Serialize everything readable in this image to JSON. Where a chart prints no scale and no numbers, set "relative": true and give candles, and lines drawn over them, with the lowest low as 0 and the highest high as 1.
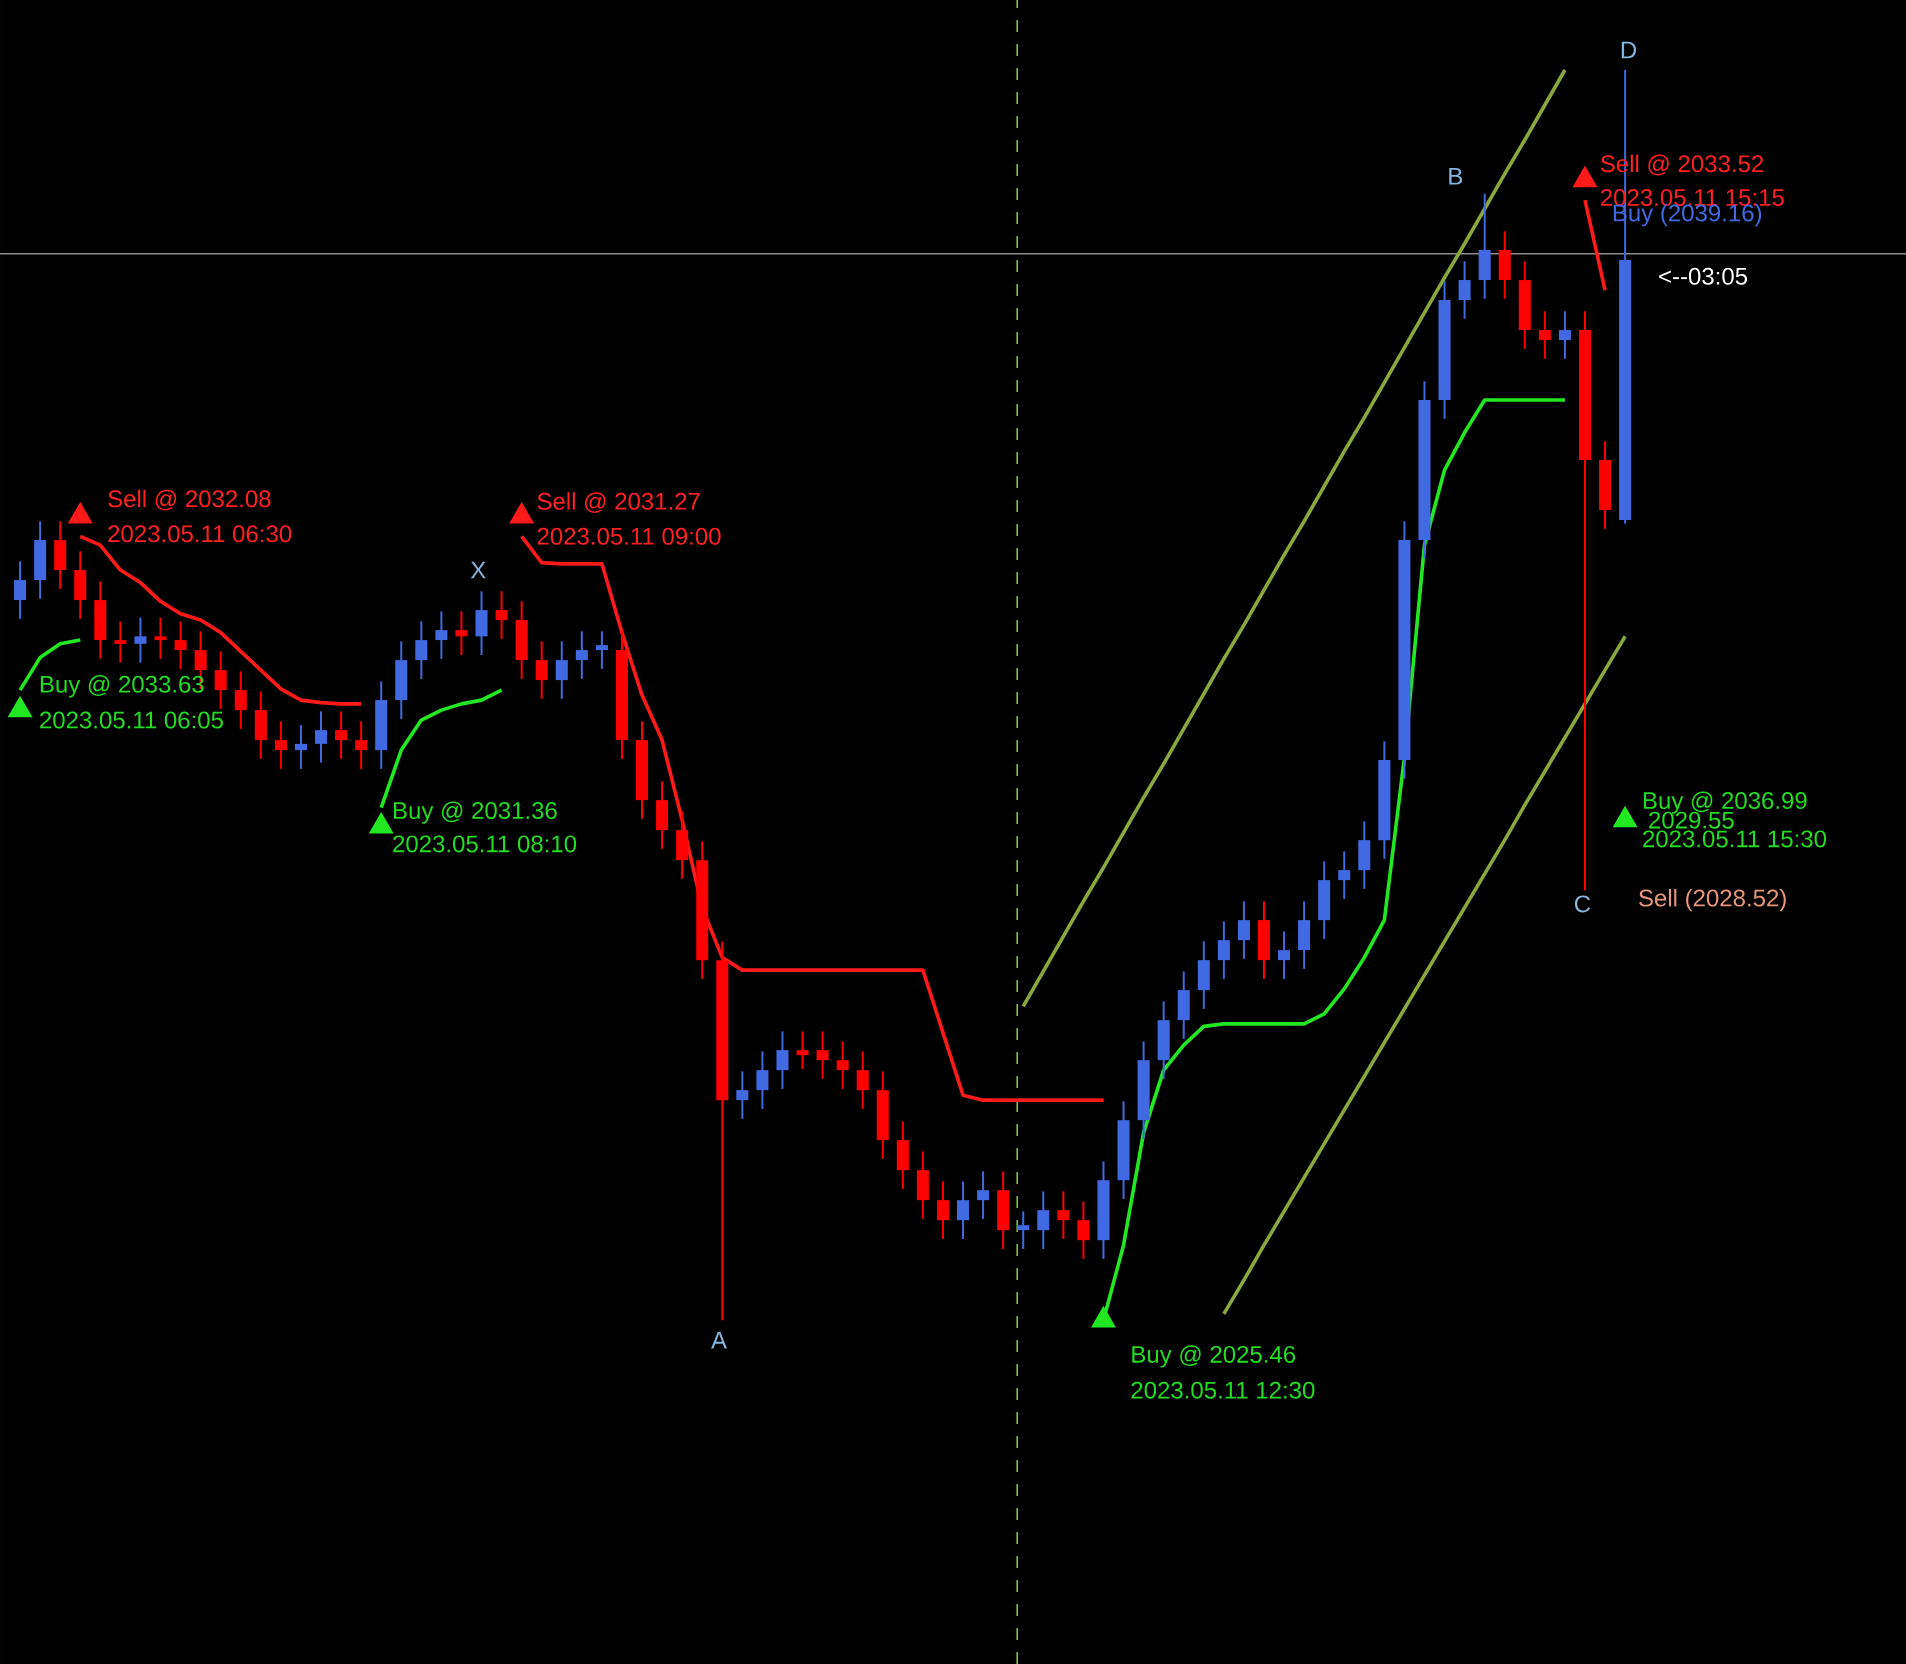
{
  "chart_data": {
    "type": "candlestick",
    "relative": true,
    "categories": [
      null,
      null,
      null,
      null,
      null,
      null,
      null,
      null,
      null,
      null,
      null,
      null,
      null,
      null,
      null,
      null,
      null,
      null,
      null,
      null,
      null,
      null,
      null,
      null,
      null,
      null,
      null,
      null,
      null,
      null,
      null,
      null,
      null,
      null,
      null,
      null,
      null,
      null,
      null,
      null,
      null,
      null,
      null,
      null,
      null,
      null,
      null,
      null,
      null,
      null,
      null,
      null,
      null,
      null,
      null,
      null,
      null,
      null,
      null,
      null,
      null,
      null,
      null,
      null,
      null,
      null,
      null,
      null,
      null,
      null,
      null,
      null,
      null,
      null,
      null,
      null,
      null,
      null,
      null,
      null,
      null
    ],
    "ohlc": [
      [
        0.576,
        0.607,
        0.561,
        0.592
      ],
      [
        0.592,
        0.639,
        0.577,
        0.624
      ],
      [
        0.624,
        0.639,
        0.585,
        0.6
      ],
      [
        0.6,
        0.615,
        0.561,
        0.576
      ],
      [
        0.576,
        0.591,
        0.529,
        0.544
      ],
      [
        0.544,
        0.559,
        0.526,
        0.541
      ],
      [
        0.541,
        0.562,
        0.526,
        0.547
      ],
      [
        0.547,
        0.562,
        0.529,
        0.544
      ],
      [
        0.544,
        0.559,
        0.521,
        0.536
      ],
      [
        0.536,
        0.551,
        0.505,
        0.52
      ],
      [
        0.52,
        0.535,
        0.489,
        0.504
      ],
      [
        0.504,
        0.519,
        0.473,
        0.488
      ],
      [
        0.488,
        0.503,
        0.449,
        0.464
      ],
      [
        0.464,
        0.479,
        0.441,
        0.456
      ],
      [
        0.456,
        0.476,
        0.441,
        0.461
      ],
      [
        0.461,
        0.487,
        0.446,
        0.472
      ],
      [
        0.472,
        0.487,
        0.449,
        0.464
      ],
      [
        0.464,
        0.479,
        0.441,
        0.456
      ],
      [
        0.456,
        0.511,
        0.441,
        0.496
      ],
      [
        0.496,
        0.543,
        0.481,
        0.528
      ],
      [
        0.528,
        0.559,
        0.513,
        0.544
      ],
      [
        0.544,
        0.567,
        0.529,
        0.552
      ],
      [
        0.552,
        0.567,
        0.532,
        0.547
      ],
      [
        0.547,
        0.583,
        0.532,
        0.568
      ],
      [
        0.568,
        0.583,
        0.545,
        0.56
      ],
      [
        0.56,
        0.575,
        0.513,
        0.528
      ],
      [
        0.528,
        0.543,
        0.497,
        0.512
      ],
      [
        0.512,
        0.543,
        0.497,
        0.528
      ],
      [
        0.528,
        0.551,
        0.513,
        0.536
      ],
      [
        0.536,
        0.551,
        0.521,
        0.54
      ],
      [
        0.536,
        0.551,
        0.449,
        0.464
      ],
      [
        0.464,
        0.479,
        0.401,
        0.416
      ],
      [
        0.416,
        0.431,
        0.377,
        0.392
      ],
      [
        0.392,
        0.407,
        0.353,
        0.368
      ],
      [
        0.368,
        0.383,
        0.273,
        0.288
      ],
      [
        0.288,
        0.303,
        0,
        0.176
      ],
      [
        0.176,
        0.199,
        0.161,
        0.184
      ],
      [
        0.184,
        0.215,
        0.169,
        0.2
      ],
      [
        0.2,
        0.231,
        0.185,
        0.216
      ],
      [
        0.216,
        0.231,
        0.201,
        0.212
      ],
      [
        0.216,
        0.231,
        0.193,
        0.208
      ],
      [
        0.208,
        0.223,
        0.185,
        0.2
      ],
      [
        0.2,
        0.215,
        0.169,
        0.184
      ],
      [
        0.184,
        0.199,
        0.129,
        0.144
      ],
      [
        0.144,
        0.159,
        0.105,
        0.12
      ],
      [
        0.12,
        0.135,
        0.081,
        0.096
      ],
      [
        0.096,
        0.111,
        0.065,
        0.08
      ],
      [
        0.08,
        0.111,
        0.065,
        0.096
      ],
      [
        0.096,
        0.119,
        0.081,
        0.104
      ],
      [
        0.104,
        0.119,
        0.057,
        0.072
      ],
      [
        0.072,
        0.087,
        0.057,
        0.076
      ],
      [
        0.072,
        0.103,
        0.057,
        0.088
      ],
      [
        0.088,
        0.103,
        0.065,
        0.08
      ],
      [
        0.08,
        0.095,
        0.049,
        0.064
      ],
      [
        0.064,
        0.127,
        0.049,
        0.112
      ],
      [
        0.112,
        0.175,
        0.097,
        0.16
      ],
      [
        0.16,
        0.223,
        0.145,
        0.208
      ],
      [
        0.208,
        0.255,
        0.193,
        0.24
      ],
      [
        0.24,
        0.279,
        0.225,
        0.264
      ],
      [
        0.264,
        0.303,
        0.249,
        0.288
      ],
      [
        0.288,
        0.319,
        0.273,
        0.304
      ],
      [
        0.304,
        0.335,
        0.289,
        0.32
      ],
      [
        0.32,
        0.335,
        0.273,
        0.288
      ],
      [
        0.288,
        0.311,
        0.273,
        0.296
      ],
      [
        0.296,
        0.335,
        0.281,
        0.32
      ],
      [
        0.32,
        0.367,
        0.305,
        0.352
      ],
      [
        0.352,
        0.375,
        0.337,
        0.36
      ],
      [
        0.36,
        0.399,
        0.345,
        0.384
      ],
      [
        0.384,
        0.463,
        0.369,
        0.448
      ],
      [
        0.448,
        0.639,
        0.433,
        0.624
      ],
      [
        0.624,
        0.751,
        0.609,
        0.736
      ],
      [
        0.736,
        0.831,
        0.721,
        0.816
      ],
      [
        0.816,
        0.847,
        0.801,
        0.832
      ],
      [
        0.832,
        0.901,
        0.817,
        0.856
      ],
      [
        0.856,
        0.871,
        0.817,
        0.832
      ],
      [
        0.832,
        0.847,
        0.777,
        0.792
      ],
      [
        0.792,
        0.807,
        0.769,
        0.784
      ],
      [
        0.784,
        0.807,
        0.769,
        0.792
      ],
      [
        0.792,
        0.807,
        0.344,
        0.688
      ],
      [
        0.688,
        0.703,
        0.633,
        0.648
      ],
      [
        0.64,
        1,
        0.637,
        0.848
      ]
    ],
    "colors": [
      "#4169e1",
      "#4169e1",
      "#ff0000",
      "#ff0000",
      "#ff0000",
      "#ff0000",
      "#4169e1",
      "#ff0000",
      "#ff0000",
      "#ff0000",
      "#ff0000",
      "#ff0000",
      "#ff0000",
      "#ff0000",
      "#4169e1",
      "#4169e1",
      "#ff0000",
      "#ff0000",
      "#4169e1",
      "#4169e1",
      "#4169e1",
      "#4169e1",
      "#ff0000",
      "#4169e1",
      "#ff0000",
      "#ff0000",
      "#ff0000",
      "#4169e1",
      "#4169e1",
      "#4169e1",
      "#ff0000",
      "#ff0000",
      "#ff0000",
      "#ff0000",
      "#ff0000",
      "#ff0000",
      "#4169e1",
      "#4169e1",
      "#4169e1",
      "#ff0000",
      "#ff0000",
      "#ff0000",
      "#ff0000",
      "#ff0000",
      "#ff0000",
      "#ff0000",
      "#ff0000",
      "#4169e1",
      "#4169e1",
      "#ff0000",
      "#4169e1",
      "#4169e1",
      "#ff0000",
      "#ff0000",
      "#4169e1",
      "#4169e1",
      "#4169e1",
      "#4169e1",
      "#4169e1",
      "#4169e1",
      "#4169e1",
      "#4169e1",
      "#ff0000",
      "#4169e1",
      "#4169e1",
      "#4169e1",
      "#4169e1",
      "#4169e1",
      "#4169e1",
      "#4169e1",
      "#4169e1",
      "#4169e1",
      "#4169e1",
      "#4169e1",
      "#ff0000",
      "#ff0000",
      "#ff0000",
      "#4169e1",
      "#ff0000",
      "#ff0000",
      "#4169e1"
    ],
    "series": [
      {
        "type": "line",
        "color": "#ff1a1a",
        "values": [
          null,
          null,
          null,
          0.627,
          0.62,
          0.6,
          0.59,
          0.575,
          0.565,
          0.56,
          0.55,
          0.535,
          0.52,
          0.505,
          0.496,
          0.494,
          0.493,
          0.493,
          null,
          null,
          null,
          null,
          null,
          null,
          null,
          0.627,
          0.606,
          0.605,
          0.605,
          0.605,
          0.55,
          0.5,
          0.464,
          0.4,
          0.33,
          0.29,
          0.28,
          0.28,
          0.28,
          0.28,
          0.28,
          0.28,
          0.28,
          0.28,
          0.28,
          0.28,
          0.23,
          0.18,
          0.176,
          0.176,
          0.176,
          0.176,
          0.176,
          0.176,
          0.176,
          null,
          null,
          null,
          null,
          null,
          null,
          null,
          null,
          null,
          null,
          null,
          null,
          null,
          null,
          null,
          null,
          null,
          null,
          null,
          null,
          null,
          null,
          null,
          0.896,
          0.824,
          null
        ]
      },
      {
        "type": "line",
        "color": "#22e822",
        "values": [
          0.504,
          0.53,
          0.541,
          0.544,
          null,
          null,
          null,
          null,
          null,
          null,
          null,
          null,
          null,
          null,
          null,
          null,
          null,
          null,
          0.41,
          0.456,
          0.48,
          0.488,
          0.493,
          0.496,
          0.504,
          null,
          null,
          null,
          null,
          null,
          null,
          null,
          null,
          null,
          null,
          null,
          null,
          null,
          null,
          null,
          null,
          null,
          null,
          null,
          null,
          null,
          null,
          null,
          null,
          null,
          null,
          null,
          null,
          null,
          0,
          0.06,
          0.15,
          0.2,
          0.22,
          0.235,
          0.237,
          0.237,
          0.237,
          0.237,
          0.237,
          0.245,
          0.265,
          0.29,
          0.32,
          0.45,
          0.62,
          0.68,
          0.71,
          0.736,
          0.736,
          0.736,
          0.736,
          0.736,
          null,
          null,
          null
        ]
      },
      {
        "type": "line",
        "color": "#8aa83c",
        "values": [
          null,
          null,
          null,
          null,
          null,
          null,
          null,
          null,
          null,
          null,
          null,
          null,
          null,
          null,
          null,
          null,
          null,
          null,
          null,
          null,
          null,
          null,
          null,
          null,
          null,
          null,
          null,
          null,
          null,
          null,
          null,
          null,
          null,
          null,
          null,
          null,
          null,
          null,
          null,
          null,
          null,
          null,
          null,
          null,
          null,
          null,
          null,
          null,
          null,
          null,
          0.251,
          0.279,
          0.307,
          0.335,
          0.362,
          0.39,
          0.418,
          0.445,
          0.473,
          0.501,
          0.529,
          0.556,
          0.584,
          0.612,
          0.639,
          0.667,
          0.695,
          0.722,
          0.75,
          0.778,
          0.806,
          0.834,
          0.861,
          0.889,
          0.917,
          0.944,
          0.972,
          1,
          null,
          null,
          null
        ]
      },
      {
        "type": "line",
        "color": "#8aa83c",
        "values": [
          null,
          null,
          null,
          null,
          null,
          null,
          null,
          null,
          null,
          null,
          null,
          null,
          null,
          null,
          null,
          null,
          null,
          null,
          null,
          null,
          null,
          null,
          null,
          null,
          null,
          null,
          null,
          null,
          null,
          null,
          null,
          null,
          null,
          null,
          null,
          null,
          null,
          null,
          null,
          null,
          null,
          null,
          null,
          null,
          null,
          null,
          null,
          null,
          null,
          null,
          null,
          null,
          null,
          null,
          null,
          null,
          null,
          null,
          null,
          null,
          0.005,
          0.032,
          0.06,
          0.087,
          0.114,
          0.141,
          0.168,
          0.195,
          0.222,
          0.249,
          0.276,
          0.303,
          0.33,
          0.357,
          0.384,
          0.412,
          0.439,
          0.466,
          0.493,
          0.52,
          0.547
        ]
      },
      {
        "type": "scatter",
        "marker": "triangle",
        "color": "#ff1a1a",
        "values": [
          null,
          null,
          null,
          0.643,
          null,
          null,
          null,
          null,
          null,
          null,
          null,
          null,
          null,
          null,
          null,
          null,
          null,
          null,
          null,
          null,
          null,
          null,
          null,
          null,
          null,
          0.643,
          null,
          null,
          null,
          null,
          null,
          null,
          null,
          null,
          null,
          null,
          null,
          null,
          null,
          null,
          null,
          null,
          null,
          null,
          null,
          null,
          null,
          null,
          null,
          null,
          null,
          null,
          null,
          null,
          null,
          null,
          null,
          null,
          null,
          null,
          null,
          null,
          null,
          null,
          null,
          null,
          null,
          null,
          null,
          null,
          null,
          null,
          null,
          null,
          null,
          null,
          null,
          null,
          0.912,
          null,
          null
        ]
      },
      {
        "type": "scatter",
        "marker": "triangle",
        "color": "#22e822",
        "values": [
          0.488,
          null,
          null,
          null,
          null,
          null,
          null,
          null,
          null,
          null,
          null,
          null,
          null,
          null,
          null,
          null,
          null,
          null,
          0.395,
          null,
          null,
          null,
          null,
          null,
          null,
          null,
          null,
          null,
          null,
          null,
          null,
          null,
          null,
          null,
          null,
          null,
          null,
          null,
          null,
          null,
          null,
          null,
          null,
          null,
          null,
          null,
          null,
          null,
          null,
          null,
          null,
          null,
          null,
          null,
          0,
          null,
          null,
          null,
          null,
          null,
          null,
          null,
          null,
          null,
          null,
          null,
          null,
          null,
          null,
          null,
          null,
          null,
          null,
          null,
          null,
          null,
          null,
          null,
          null,
          null,
          0.4
        ]
      }
    ],
    "ref_lines": [
      {
        "axis": "y",
        "value": 0.853,
        "color": "#8c8c8c"
      }
    ],
    "annotations": [
      "Sell @ 2032.08",
      "2023.05.11 06:30",
      "Buy @ 2033.63",
      "2023.05.11 06:05",
      "X",
      "Buy @ 2031.36",
      "2023.05.11 08:10",
      "Sell @ 2031.27",
      "2023.05.11 09:00",
      "A",
      "Buy @ 2025.46",
      "2023.05.11 12:30",
      "B",
      "Sell @ 2033.52",
      "2023.05.11 15:15",
      "Buy (2039.16)",
      "D",
      "<--03:05",
      "C",
      "Sell (2028.52)",
      "Buy @ 2036.99",
      "2029.55",
      "2023.05.11 15:30"
    ]
  }
}
